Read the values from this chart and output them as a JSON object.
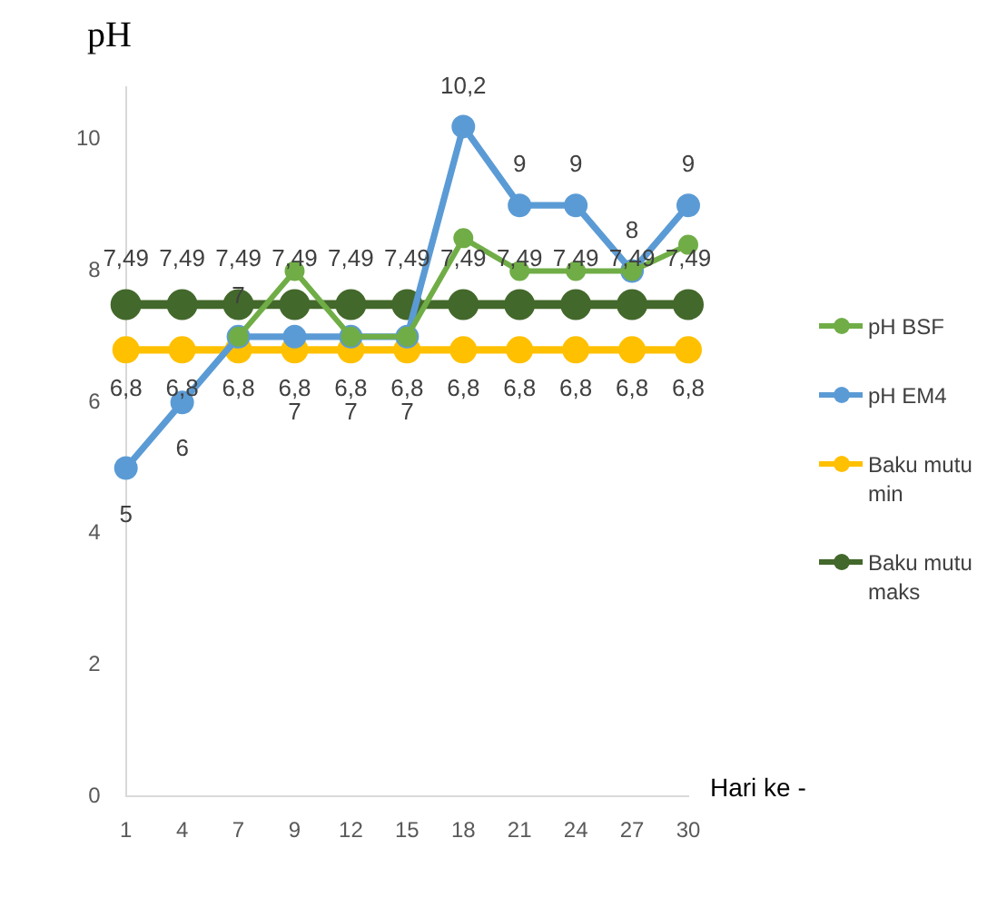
{
  "chart_data": {
    "type": "line",
    "ylabel": "pH",
    "xlabel": "Hari ke -",
    "categories": [
      "1",
      "4",
      "7",
      "9",
      "12",
      "15",
      "18",
      "21",
      "24",
      "27",
      "30"
    ],
    "series": [
      {
        "name": "pH BSF",
        "color": "#70ad47",
        "values": [
          null,
          null,
          7,
          8,
          7,
          7,
          8.5,
          8,
          8,
          8,
          8.4
        ],
        "value_labels": [
          null,
          null,
          "7",
          null,
          null,
          null,
          null,
          null,
          null,
          null,
          null
        ]
      },
      {
        "name": "pH EM4",
        "color": "#5b9bd5",
        "values": [
          5,
          6,
          7,
          7,
          7,
          7,
          10.2,
          9,
          9,
          8,
          9
        ],
        "value_labels": [
          "5",
          "6",
          null,
          "7",
          "7",
          "7",
          "10,2",
          "9",
          "9",
          "8",
          "9"
        ]
      },
      {
        "name": "Baku mutu min",
        "color": "#ffc000",
        "values": [
          6.8,
          6.8,
          6.8,
          6.8,
          6.8,
          6.8,
          6.8,
          6.8,
          6.8,
          6.8,
          6.8
        ],
        "value_labels": [
          "6,8",
          "6,8",
          "6,8",
          "6,8",
          "6,8",
          "6,8",
          "6,8",
          "6,8",
          "6,8",
          "6,8",
          "6,8"
        ]
      },
      {
        "name": "Baku mutu maks",
        "color": "#43682b",
        "values": [
          7.49,
          7.49,
          7.49,
          7.49,
          7.49,
          7.49,
          7.49,
          7.49,
          7.49,
          7.49,
          7.49
        ],
        "value_labels": [
          "7,49",
          "7,49",
          "7,49",
          "7,49",
          "7,49",
          "7,49",
          "7,49",
          "7,49",
          "7,49",
          "7,49",
          "7,49"
        ]
      }
    ],
    "ylim": [
      0,
      10.8
    ],
    "yticks": [
      0,
      2,
      4,
      6,
      8,
      10
    ],
    "grid": false,
    "legend": "right",
    "marker": "circle",
    "line_style": "solid"
  }
}
